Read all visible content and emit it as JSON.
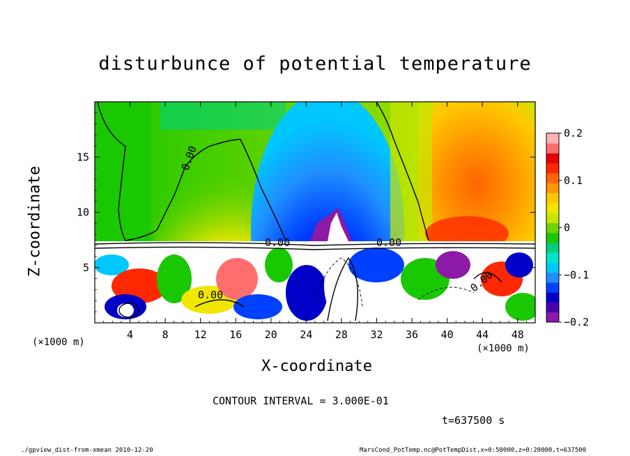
{
  "chart_data": {
    "type": "heatmap",
    "title": "disturbunce of potential temperature",
    "xlabel": "X-coordinate",
    "ylabel": "Z-coordinate",
    "x_unit_label": "(×1000 m)",
    "xlim": [
      0,
      50
    ],
    "ylim": [
      0,
      20
    ],
    "x_ticks": [
      4,
      8,
      12,
      16,
      20,
      24,
      28,
      32,
      36,
      40,
      44,
      48
    ],
    "y_ticks": [
      5,
      10,
      15
    ],
    "colorbar": {
      "range": [
        -0.2,
        0.2
      ],
      "tick_labels": [
        "0.2",
        "0.1",
        "0",
        "−0.1",
        "−0.2"
      ],
      "tick_values": [
        0.2,
        0.1,
        0,
        -0.1,
        -0.2
      ],
      "colors": [
        "#8c1aa6",
        "#4a00b0",
        "#0000c8",
        "#0040ff",
        "#1f8fff",
        "#00c8ff",
        "#00e6cc",
        "#00d07a",
        "#19c800",
        "#6ed400",
        "#c8e600",
        "#f0e600",
        "#ffc800",
        "#ff9600",
        "#ff6400",
        "#ff2800",
        "#e60000",
        "#ff6e6e",
        "#ffb4b4"
      ]
    },
    "contour_labels": [
      "0.00",
      "0.00",
      "0.00",
      "0.00",
      "0.00"
    ],
    "contour_interval_text": "CONTOUR INTERVAL = 3.000E-01",
    "time_text": "t=637500 s"
  },
  "footer": {
    "left": "./gpview_dist-from-xmean  2010-12-20",
    "right": "MarsCond_PotTemp.nc@PotTempDist,x=0:50000,z=0:20000,t=637500"
  }
}
